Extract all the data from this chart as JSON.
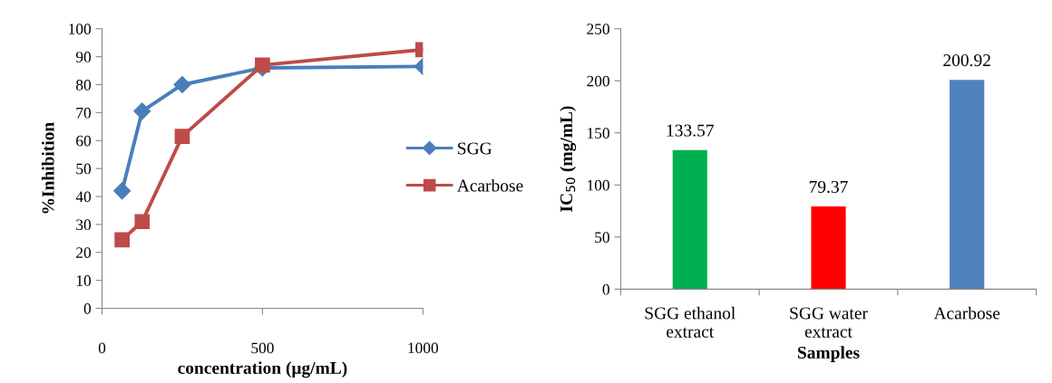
{
  "chart_data": [
    {
      "type": "line",
      "xlabel": "concentration (μg/mL)",
      "ylabel": "%Inhibition",
      "x": [
        62.5,
        125,
        250,
        500,
        1000
      ],
      "series": [
        {
          "name": "SGG",
          "color": "#4a7ebb",
          "marker": "diamond",
          "values": [
            42,
            70.5,
            80,
            86,
            86.5
          ]
        },
        {
          "name": "Acarbose",
          "color": "#be4b48",
          "marker": "square",
          "values": [
            24.5,
            31,
            61.5,
            87,
            92.5
          ]
        }
      ],
      "xlim": [
        0,
        1000
      ],
      "xticks": [
        0,
        500,
        1000
      ],
      "ylim": [
        0,
        100
      ],
      "yticks": [
        0,
        10,
        20,
        30,
        40,
        50,
        60,
        70,
        80,
        90,
        100
      ],
      "grid": false,
      "legend": "right",
      "line_style": "solid"
    },
    {
      "type": "bar",
      "xlabel": "Samples",
      "ylabel": "IC$_{50}$ (mg/mL)",
      "categories": [
        "SGG ethanol\nextract",
        "SGG water\nextract",
        "Acarbose"
      ],
      "values": [
        133.57,
        79.37,
        200.92
      ],
      "colors": [
        "#00b050",
        "#ff0000",
        "#4f81bd"
      ],
      "ylim": [
        0,
        250
      ],
      "yticks": [
        0,
        50,
        100,
        150,
        200,
        250
      ],
      "grid": false,
      "data_labels": true
    }
  ]
}
